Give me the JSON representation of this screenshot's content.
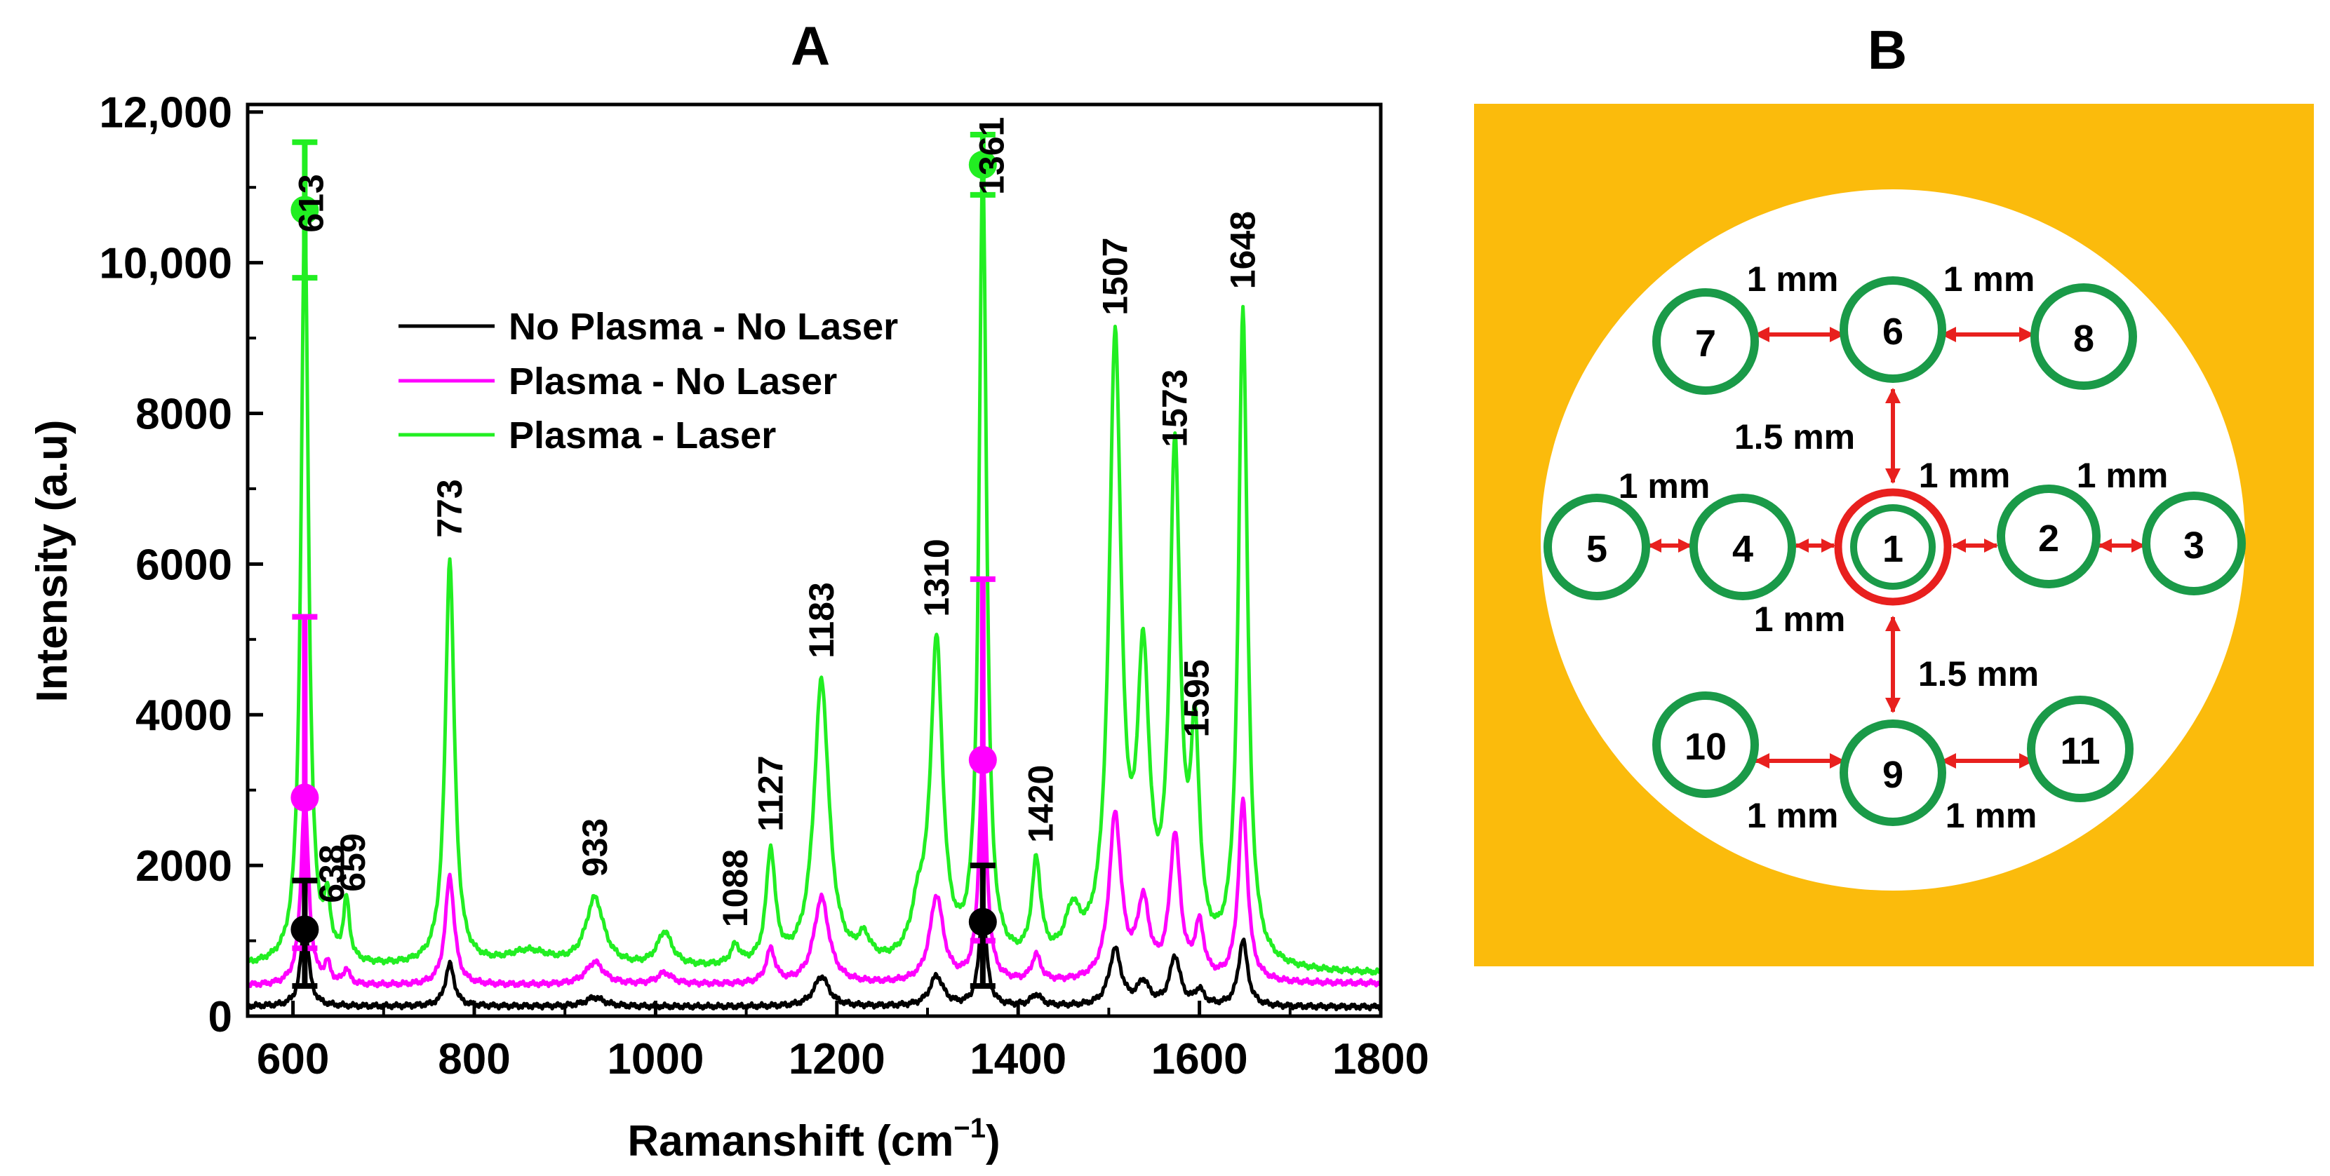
{
  "panel_a": {
    "label": "A"
  },
  "panel_b": {
    "label": "B",
    "colors": {
      "background": "#FBBB0C",
      "circle_fill": "#FFFFFF",
      "ring": "#1A9A48",
      "center_ring": "#E8201E",
      "arrow": "#E8201E"
    },
    "electrodes": [
      "1",
      "2",
      "3",
      "4",
      "5",
      "6",
      "7",
      "8",
      "9",
      "10",
      "11"
    ],
    "distances": {
      "d_7_6": "1 mm",
      "d_6_8": "1 mm",
      "d_6_1": "1.5 mm",
      "d_5_4": "1 mm",
      "d_1_2": "1 mm",
      "d_2_3": "1 mm",
      "d_4_1": "1 mm",
      "d_1_9": "1.5 mm",
      "d_10_9": "1 mm",
      "d_9_11": "1 mm"
    }
  },
  "chart_data": {
    "type": "line",
    "title": "A",
    "xlabel": "Ramanshift (cm",
    "xlabel_sup": "−1",
    "xlabel_close": ")",
    "ylabel": "Intensity (a.u)",
    "xlim": [
      550,
      1800
    ],
    "ylim": [
      0,
      12100
    ],
    "xticks": [
      600,
      800,
      1000,
      1200,
      1400,
      1600,
      1800
    ],
    "xtick_labels": [
      "600",
      "800",
      "1000",
      "1200",
      "1400",
      "1600",
      "1800"
    ],
    "yticks": [
      0,
      2000,
      4000,
      6000,
      8000,
      10000,
      12000
    ],
    "ytick_labels": [
      "0",
      "2000",
      "4000",
      "6000",
      "8000",
      "10,000",
      "12,000"
    ],
    "legend_position": "upper-left-center",
    "series": [
      {
        "name": "No Plasma - No Laser",
        "color": "#000000",
        "baseline": [
          [
            550,
            130
          ],
          [
            1800,
            120
          ]
        ],
        "peaks": [
          [
            613,
            1150,
            5
          ],
          [
            773,
            560,
            6
          ],
          [
            933,
            120,
            12
          ],
          [
            1183,
            400,
            10
          ],
          [
            1310,
            400,
            9
          ],
          [
            1361,
            1250,
            5
          ],
          [
            1420,
            150,
            7
          ],
          [
            1507,
            750,
            8
          ],
          [
            1538,
            300,
            8
          ],
          [
            1573,
            650,
            7
          ],
          [
            1600,
            200,
            6
          ],
          [
            1648,
            880,
            6
          ]
        ]
      },
      {
        "name": "Plasma - No Laser",
        "color": "#FF00FF",
        "baseline": [
          [
            550,
            400
          ],
          [
            1800,
            430
          ]
        ],
        "peaks": [
          [
            613,
            2500,
            5
          ],
          [
            638,
            250,
            4
          ],
          [
            659,
            200,
            4
          ],
          [
            773,
            1450,
            6
          ],
          [
            933,
            300,
            12
          ],
          [
            1010,
            150,
            10
          ],
          [
            1127,
            450,
            6
          ],
          [
            1183,
            1150,
            10
          ],
          [
            1310,
            1150,
            9
          ],
          [
            1361,
            3000,
            5
          ],
          [
            1420,
            350,
            6
          ],
          [
            1507,
            2200,
            8
          ],
          [
            1538,
            1000,
            8
          ],
          [
            1573,
            1900,
            7
          ],
          [
            1600,
            700,
            6
          ],
          [
            1648,
            2400,
            6
          ]
        ]
      },
      {
        "name": "Plasma - Laser",
        "color": "#22EE22",
        "baseline": [
          [
            550,
            650
          ],
          [
            1800,
            550
          ]
        ],
        "peaks": [
          [
            613,
            10000,
            5
          ],
          [
            638,
            700,
            4
          ],
          [
            659,
            800,
            4
          ],
          [
            773,
            5400,
            6
          ],
          [
            860,
            200,
            30
          ],
          [
            933,
            900,
            12
          ],
          [
            1010,
            450,
            10
          ],
          [
            1088,
            250,
            6
          ],
          [
            1127,
            1500,
            6
          ],
          [
            1183,
            3800,
            10
          ],
          [
            1230,
            300,
            8
          ],
          [
            1290,
            600,
            10
          ],
          [
            1310,
            4200,
            8
          ],
          [
            1361,
            10500,
            5
          ],
          [
            1420,
            1300,
            6
          ],
          [
            1460,
            600,
            10
          ],
          [
            1507,
            8200,
            8
          ],
          [
            1538,
            3700,
            8
          ],
          [
            1573,
            6600,
            7
          ],
          [
            1595,
            2700,
            6
          ],
          [
            1648,
            8700,
            6
          ]
        ]
      }
    ],
    "error_bars": [
      {
        "series": "Plasma - Laser",
        "x": 613,
        "y": 10700,
        "low": 9800,
        "high": 11600
      },
      {
        "series": "Plasma - No Laser",
        "x": 613,
        "y": 2900,
        "low": 900,
        "high": 5300
      },
      {
        "series": "No Plasma - No Laser",
        "x": 613,
        "y": 1150,
        "low": 400,
        "high": 1800
      },
      {
        "series": "Plasma - Laser",
        "x": 1361,
        "y": 11300,
        "low": 10900,
        "high": 11700
      },
      {
        "series": "Plasma - No Laser",
        "x": 1361,
        "y": 3400,
        "low": 1000,
        "high": 5800
      },
      {
        "series": "No Plasma - No Laser",
        "x": 1361,
        "y": 1250,
        "low": 400,
        "high": 2000
      }
    ],
    "annotations": [
      {
        "text": "613",
        "x": 620,
        "y": 10400
      },
      {
        "text": "638",
        "x": 643,
        "y": 1500
      },
      {
        "text": "659",
        "x": 666,
        "y": 1650
      },
      {
        "text": "773",
        "x": 773,
        "y": 6350
      },
      {
        "text": "933",
        "x": 933,
        "y": 1850
      },
      {
        "text": "1088",
        "x": 1088,
        "y": 1180
      },
      {
        "text": "1127",
        "x": 1127,
        "y": 2450
      },
      {
        "text": "1183",
        "x": 1183,
        "y": 4750
      },
      {
        "text": "1310",
        "x": 1310,
        "y": 5300
      },
      {
        "text": "1361",
        "x": 1371,
        "y": 10900
      },
      {
        "text": "1420",
        "x": 1425,
        "y": 2300
      },
      {
        "text": "1507",
        "x": 1507,
        "y": 9300
      },
      {
        "text": "1573",
        "x": 1573,
        "y": 7550
      },
      {
        "text": "1595",
        "x": 1597,
        "y": 3700
      },
      {
        "text": "1648",
        "x": 1648,
        "y": 9650
      }
    ]
  }
}
